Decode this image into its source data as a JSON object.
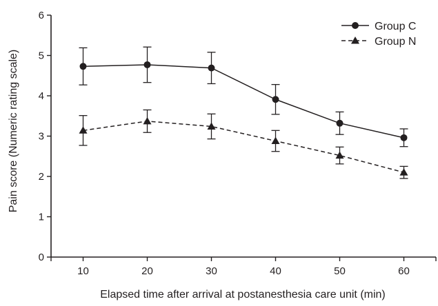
{
  "chart_data": {
    "type": "line",
    "xlabel": "Elapsed time after arrival at postanesthesia care unit (min)",
    "ylabel": "Pain score (Numeric rating scale)",
    "x": [
      10,
      20,
      30,
      40,
      50,
      60
    ],
    "xlim": [
      5,
      65
    ],
    "ylim": [
      0,
      6
    ],
    "xticks": [
      10,
      20,
      30,
      40,
      50,
      60
    ],
    "yticks": [
      0,
      1,
      2,
      3,
      4,
      5,
      6
    ],
    "grid": false,
    "legend_position": "top-right",
    "series": [
      {
        "name": "Group C",
        "marker": "circle",
        "line_style": "solid",
        "color": "#231f20",
        "values": [
          4.73,
          4.77,
          4.69,
          3.91,
          3.32,
          2.96
        ],
        "error": [
          0.46,
          0.44,
          0.39,
          0.37,
          0.28,
          0.22
        ]
      },
      {
        "name": "Group N",
        "marker": "triangle",
        "line_style": "dashed",
        "color": "#231f20",
        "values": [
          3.14,
          3.37,
          3.24,
          2.88,
          2.52,
          2.1
        ],
        "error": [
          0.37,
          0.28,
          0.31,
          0.26,
          0.21,
          0.15
        ]
      }
    ]
  }
}
